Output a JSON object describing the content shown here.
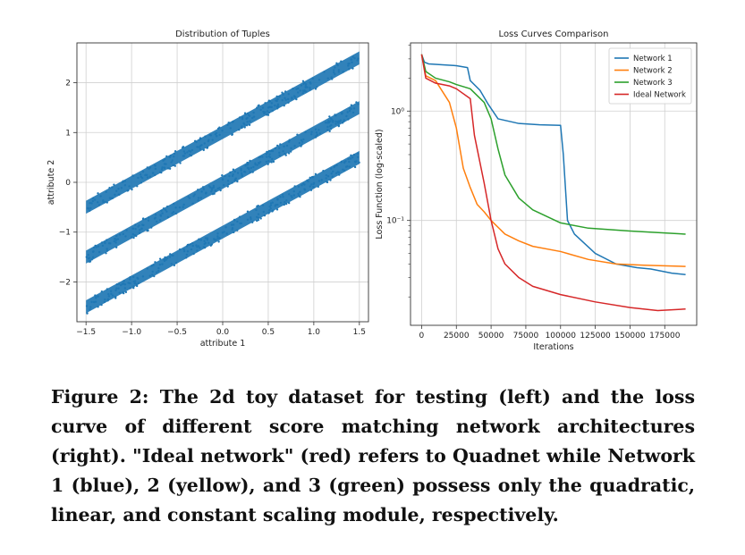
{
  "chart_data": [
    {
      "type": "scatter",
      "title": "Distribution of Tuples",
      "xlabel": "attribute 1",
      "ylabel": "attribute 2",
      "xlim": [
        -1.6,
        1.6
      ],
      "ylim": [
        -2.8,
        2.8
      ],
      "xticks": [
        -1.5,
        -1.0,
        -0.5,
        0.0,
        0.5,
        1.0,
        1.5
      ],
      "xtick_labels": [
        "−1.5",
        "−1.0",
        "−0.5",
        "0.0",
        "0.5",
        "1.0",
        "1.5"
      ],
      "yticks": [
        -2,
        -1,
        0,
        1,
        2
      ],
      "ytick_labels": [
        "−2",
        "−1",
        "0",
        "1",
        "2"
      ],
      "grid": true,
      "color": "#1f77b4",
      "series": [
        {
          "x": [
            -1.5,
            1.5
          ],
          "y": [
            -0.5,
            2.5
          ]
        },
        {
          "x": [
            -1.5,
            1.5
          ],
          "y": [
            -1.5,
            1.5
          ]
        },
        {
          "x": [
            -1.5,
            1.5
          ],
          "y": [
            -2.5,
            0.5
          ]
        }
      ]
    },
    {
      "type": "line",
      "title": "Loss Curves Comparison",
      "xlabel": "Iterations",
      "ylabel": "Loss Function (log-scaled)",
      "yscale": "log",
      "xlim": [
        -8000,
        198000
      ],
      "ylim": [
        0.011,
        4.2
      ],
      "xticks": [
        0,
        25000,
        50000,
        75000,
        100000,
        125000,
        150000,
        175000
      ],
      "xtick_labels": [
        "0",
        "25000",
        "50000",
        "75000",
        "100000",
        "125000",
        "150000",
        "175000"
      ],
      "yticks": [
        1,
        0.1
      ],
      "ytick_labels": [
        "10⁰",
        "10⁻¹"
      ],
      "grid": true,
      "legend_position": "top-right",
      "series": [
        {
          "name": "Network 1",
          "color": "#1f77b4",
          "x": [
            0,
            2000,
            5000,
            15000,
            25000,
            33000,
            35000,
            42000,
            48000,
            55000,
            70000,
            85000,
            100000,
            102000,
            105000,
            110000,
            125000,
            140000,
            155000,
            165000,
            180000,
            190000
          ],
          "y": [
            3.3,
            2.8,
            2.7,
            2.65,
            2.6,
            2.5,
            1.9,
            1.55,
            1.15,
            0.85,
            0.77,
            0.75,
            0.74,
            0.4,
            0.1,
            0.075,
            0.05,
            0.04,
            0.037,
            0.036,
            0.033,
            0.032
          ]
        },
        {
          "name": "Network 2",
          "color": "#ff7f0e",
          "x": [
            0,
            3000,
            10000,
            20000,
            25000,
            30000,
            35000,
            40000,
            45000,
            50000,
            60000,
            70000,
            80000,
            100000,
            120000,
            140000,
            160000,
            190000
          ],
          "y": [
            3.3,
            2.1,
            1.9,
            1.2,
            0.7,
            0.3,
            0.2,
            0.14,
            0.12,
            0.1,
            0.075,
            0.065,
            0.058,
            0.052,
            0.044,
            0.04,
            0.039,
            0.038
          ]
        },
        {
          "name": "Network 3",
          "color": "#2ca02c",
          "x": [
            0,
            3000,
            10000,
            20000,
            25000,
            35000,
            45000,
            50000,
            55000,
            60000,
            70000,
            80000,
            100000,
            120000,
            150000,
            190000
          ],
          "y": [
            3.3,
            2.3,
            2.0,
            1.85,
            1.75,
            1.6,
            1.2,
            0.85,
            0.45,
            0.26,
            0.16,
            0.125,
            0.095,
            0.085,
            0.08,
            0.075
          ]
        },
        {
          "name": "Ideal Network",
          "color": "#d62728",
          "x": [
            0,
            3000,
            10000,
            20000,
            25000,
            35000,
            38000,
            45000,
            50000,
            55000,
            60000,
            70000,
            80000,
            100000,
            125000,
            150000,
            170000,
            190000
          ],
          "y": [
            3.3,
            2.0,
            1.8,
            1.7,
            1.6,
            1.3,
            0.6,
            0.22,
            0.1,
            0.055,
            0.04,
            0.03,
            0.025,
            0.021,
            0.018,
            0.016,
            0.015,
            0.0155
          ]
        }
      ]
    }
  ],
  "caption": "Figure 2: The 2d toy dataset for testing (left) and the loss curve of different score matching network architectures (right). \"Ideal network\" (red) refers to Quadnet while Network 1 (blue), 2 (yellow), and 3 (green) possess only the quadratic, linear, and constant scaling module, respectively."
}
